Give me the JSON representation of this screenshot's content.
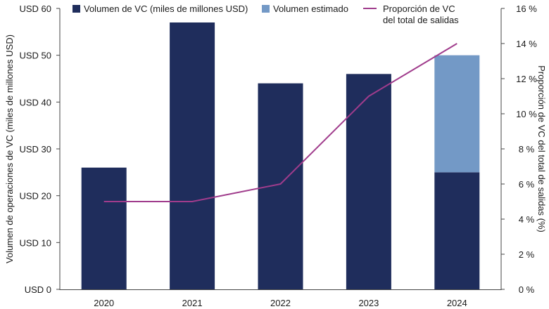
{
  "chart_data": {
    "type": "bar",
    "categories": [
      "2020",
      "2021",
      "2022",
      "2023",
      "2024"
    ],
    "series": [
      {
        "name": "Volumen de VC (miles de millones USD)",
        "kind": "bar",
        "axis": "left",
        "values": [
          26,
          57,
          44,
          46,
          25
        ],
        "color": "#1f2d5c"
      },
      {
        "name": "Volumen estimado",
        "kind": "bar-stack",
        "axis": "left",
        "values": [
          0,
          0,
          0,
          0,
          25
        ],
        "color": "#7399c6"
      },
      {
        "name": "Proporción de VC\ndel total de salidas",
        "kind": "line",
        "axis": "right",
        "values": [
          5,
          5,
          6,
          11,
          14
        ],
        "color": "#a03c8c"
      }
    ],
    "ylabel_left": "Volumen de operaciones de VC (miles de millones USD)",
    "ylabel_right": "Proporción de VC del total de salidas (%)",
    "ylim_left": [
      0,
      60
    ],
    "ylim_right": [
      0,
      16
    ],
    "yticks_left": [
      "USD 0",
      "USD 10",
      "USD 20",
      "USD 30",
      "USD 40",
      "USD 50",
      "USD 60"
    ],
    "yticks_right": [
      "0 %",
      "2 %",
      "4 %",
      "6 %",
      "8 %",
      "10 %",
      "12 %",
      "14 %",
      "16 %"
    ],
    "legend": {
      "position": "top",
      "items": [
        {
          "label": "Volumen de VC (miles de millones USD)",
          "symbol": "square",
          "color": "#1f2d5c"
        },
        {
          "label": "Volumen estimado",
          "symbol": "square",
          "color": "#7399c6"
        },
        {
          "label": "Proporción de VC\ndel total de salidas",
          "symbol": "line",
          "color": "#a03c8c"
        }
      ]
    },
    "grid": false
  }
}
